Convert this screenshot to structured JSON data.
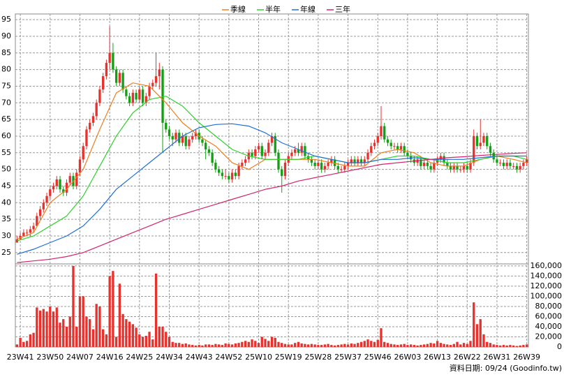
{
  "chart_data": {
    "type": "candlestick",
    "legend": "top",
    "grid": true,
    "footnote": "資料日期: 09/24 (Goodinfo.tw)",
    "up_color": "#e8302c",
    "down_color": "#11a011",
    "ylim": [
      21.6,
      96.7
    ],
    "yticks": [
      25,
      30,
      35,
      40,
      45,
      50,
      55,
      60,
      65,
      70,
      75,
      80,
      85,
      90,
      95
    ],
    "categories": [
      null,
      "23W41",
      null,
      null,
      null,
      null,
      null,
      null,
      null,
      null,
      "23W50",
      null,
      null,
      null,
      null,
      null,
      null,
      null,
      null,
      "24W07",
      null,
      null,
      null,
      null,
      null,
      null,
      null,
      null,
      "24W16",
      null,
      null,
      null,
      null,
      null,
      null,
      null,
      null,
      "24W25",
      null,
      null,
      null,
      null,
      null,
      null,
      null,
      null,
      "24W34",
      null,
      null,
      null,
      null,
      null,
      null,
      null,
      null,
      "24W43",
      null,
      null,
      null,
      null,
      null,
      null,
      null,
      null,
      "24W52",
      null,
      null,
      null,
      null,
      null,
      null,
      null,
      null,
      "25W10",
      null,
      null,
      null,
      null,
      null,
      null,
      null,
      null,
      "25W19",
      null,
      null,
      null,
      null,
      null,
      null,
      null,
      null,
      "25W28",
      null,
      null,
      null,
      null,
      null,
      null,
      null,
      null,
      "25W37",
      null,
      null,
      null,
      null,
      null,
      null,
      null,
      null,
      "25W46",
      null,
      null,
      null,
      null,
      null,
      null,
      null,
      null,
      "26W03",
      null,
      null,
      null,
      null,
      null,
      null,
      null,
      null,
      "26W13",
      null,
      null,
      null,
      null,
      null,
      null,
      null,
      null,
      "26W22",
      null,
      null,
      null,
      null,
      null,
      null,
      null,
      null,
      "26W31",
      null,
      null,
      null,
      null,
      null,
      null,
      null,
      null,
      "26W39"
    ],
    "candles": [
      [
        28,
        30,
        28,
        29
      ],
      [
        29,
        31,
        29,
        30
      ],
      [
        30,
        32,
        30,
        31
      ],
      [
        31,
        32,
        30,
        31
      ],
      [
        31,
        33,
        30,
        32
      ],
      [
        32,
        34,
        31,
        33
      ],
      [
        33,
        37,
        33,
        36
      ],
      [
        36,
        39,
        35,
        38
      ],
      [
        38,
        41,
        37,
        40
      ],
      [
        40,
        43,
        39,
        42
      ],
      [
        42,
        45,
        41,
        44
      ],
      [
        44,
        46,
        43,
        45
      ],
      [
        45,
        48,
        44,
        47
      ],
      [
        47,
        48,
        43,
        44
      ],
      [
        44,
        45,
        42,
        43
      ],
      [
        43,
        47,
        42,
        46
      ],
      [
        46,
        49,
        45,
        48
      ],
      [
        48,
        49,
        44,
        45
      ],
      [
        45,
        50,
        44,
        49
      ],
      [
        49,
        54,
        48,
        53
      ],
      [
        53,
        58,
        52,
        57
      ],
      [
        57,
        63,
        56,
        62
      ],
      [
        62,
        65,
        61,
        64
      ],
      [
        64,
        67,
        63,
        66
      ],
      [
        66,
        71,
        65,
        70
      ],
      [
        70,
        75,
        69,
        74
      ],
      [
        74,
        79,
        73,
        78
      ],
      [
        78,
        83,
        77,
        82
      ],
      [
        82,
        93,
        80,
        85
      ],
      [
        85,
        88,
        79,
        80
      ],
      [
        80,
        81,
        75,
        76
      ],
      [
        76,
        80,
        75,
        79
      ],
      [
        79,
        80,
        73,
        74
      ],
      [
        74,
        75,
        71,
        72
      ],
      [
        72,
        73,
        69,
        70
      ],
      [
        70,
        74,
        69,
        73
      ],
      [
        73,
        74,
        70,
        71
      ],
      [
        71,
        75,
        70,
        74
      ],
      [
        74,
        75,
        69,
        70
      ],
      [
        70,
        73,
        69,
        72
      ],
      [
        72,
        76,
        71,
        75
      ],
      [
        75,
        77,
        74,
        76
      ],
      [
        76,
        85,
        75,
        78
      ],
      [
        78,
        82,
        74,
        80
      ],
      [
        80,
        81,
        55,
        64
      ],
      [
        64,
        65,
        61,
        62
      ],
      [
        62,
        63,
        59,
        60
      ],
      [
        60,
        61,
        57,
        59
      ],
      [
        59,
        62,
        58,
        61
      ],
      [
        61,
        62,
        57,
        58
      ],
      [
        58,
        61,
        57,
        60
      ],
      [
        60,
        61,
        56,
        57
      ],
      [
        57,
        60,
        56,
        59
      ],
      [
        59,
        61,
        58,
        60
      ],
      [
        60,
        62,
        59,
        61
      ],
      [
        61,
        62,
        58,
        59
      ],
      [
        59,
        60,
        57,
        58
      ],
      [
        58,
        59,
        53,
        56
      ],
      [
        56,
        57,
        54,
        55
      ],
      [
        55,
        56,
        51,
        52
      ],
      [
        52,
        53,
        49,
        50
      ],
      [
        50,
        51,
        48,
        49
      ],
      [
        49,
        50,
        47,
        48
      ],
      [
        48,
        50,
        47,
        48
      ],
      [
        48,
        49,
        46,
        47
      ],
      [
        47,
        50,
        46,
        49
      ],
      [
        49,
        50,
        47,
        48
      ],
      [
        48,
        52,
        47,
        51
      ],
      [
        51,
        53,
        50,
        52
      ],
      [
        52,
        54,
        51,
        53
      ],
      [
        53,
        56,
        52,
        55
      ],
      [
        55,
        56,
        53,
        54
      ],
      [
        54,
        57,
        53,
        56
      ],
      [
        56,
        58,
        55,
        57
      ],
      [
        57,
        58,
        53,
        54
      ],
      [
        54,
        56,
        53,
        55
      ],
      [
        55,
        59,
        54,
        58
      ],
      [
        58,
        61,
        57,
        60
      ],
      [
        60,
        61,
        54,
        55
      ],
      [
        55,
        56,
        49,
        50
      ],
      [
        50,
        51,
        43,
        48
      ],
      [
        48,
        53,
        47,
        52
      ],
      [
        52,
        55,
        51,
        54
      ],
      [
        54,
        56,
        53,
        55
      ],
      [
        55,
        57,
        54,
        56
      ],
      [
        56,
        58,
        54,
        55
      ],
      [
        55,
        58,
        54,
        57
      ],
      [
        57,
        58,
        53,
        54
      ],
      [
        54,
        55,
        52,
        53
      ],
      [
        53,
        54,
        51,
        52
      ],
      [
        52,
        53,
        50,
        51
      ],
      [
        51,
        53,
        50,
        52
      ],
      [
        52,
        53,
        49,
        50
      ],
      [
        50,
        52,
        49,
        51
      ],
      [
        51,
        53,
        50,
        52
      ],
      [
        52,
        54,
        51,
        53
      ],
      [
        53,
        54,
        50,
        51
      ],
      [
        51,
        52,
        49,
        50
      ],
      [
        50,
        51,
        49,
        50
      ],
      [
        50,
        52,
        49,
        51
      ],
      [
        51,
        53,
        50,
        52
      ],
      [
        52,
        54,
        51,
        53
      ],
      [
        53,
        54,
        51,
        52
      ],
      [
        52,
        54,
        51,
        53
      ],
      [
        53,
        54,
        51,
        52
      ],
      [
        52,
        54,
        51,
        53
      ],
      [
        53,
        56,
        52,
        55
      ],
      [
        55,
        58,
        54,
        57
      ],
      [
        57,
        59,
        56,
        58
      ],
      [
        58,
        61,
        57,
        60
      ],
      [
        60,
        69,
        59,
        63
      ],
      [
        63,
        64,
        58,
        59
      ],
      [
        59,
        60,
        57,
        58
      ],
      [
        58,
        59,
        56,
        57
      ],
      [
        57,
        58,
        56,
        57
      ],
      [
        57,
        58,
        55,
        56
      ],
      [
        56,
        58,
        55,
        57
      ],
      [
        57,
        58,
        54,
        55
      ],
      [
        55,
        56,
        53,
        54
      ],
      [
        54,
        55,
        52,
        53
      ],
      [
        53,
        54,
        51,
        52
      ],
      [
        52,
        54,
        51,
        53
      ],
      [
        53,
        54,
        50,
        51
      ],
      [
        51,
        53,
        50,
        52
      ],
      [
        52,
        53,
        50,
        51
      ],
      [
        51,
        52,
        49,
        50
      ],
      [
        50,
        53,
        49,
        52
      ],
      [
        52,
        54,
        51,
        53
      ],
      [
        53,
        55,
        52,
        54
      ],
      [
        54,
        55,
        51,
        52
      ],
      [
        52,
        53,
        50,
        51
      ],
      [
        51,
        52,
        49,
        50
      ],
      [
        50,
        52,
        49,
        51
      ],
      [
        51,
        52,
        49,
        50
      ],
      [
        50,
        51,
        49,
        50
      ],
      [
        50,
        52,
        49,
        51
      ],
      [
        51,
        52,
        49,
        50
      ],
      [
        50,
        53,
        49,
        52
      ],
      [
        52,
        62,
        51,
        60
      ],
      [
        60,
        61,
        56,
        57
      ],
      [
        57,
        65,
        56,
        58
      ],
      [
        58,
        61,
        57,
        60
      ],
      [
        60,
        61,
        56,
        57
      ],
      [
        57,
        58,
        54,
        55
      ],
      [
        55,
        56,
        52,
        53
      ],
      [
        53,
        54,
        51,
        52
      ],
      [
        52,
        53,
        51,
        52
      ],
      [
        52,
        53,
        50,
        51
      ],
      [
        51,
        53,
        50,
        52
      ],
      [
        52,
        53,
        50,
        51
      ],
      [
        51,
        52,
        50,
        51
      ],
      [
        51,
        52,
        49,
        50
      ],
      [
        50,
        52,
        49,
        51
      ],
      [
        51,
        53,
        50,
        52
      ],
      [
        52,
        54,
        51,
        53
      ]
    ],
    "volume": {
      "color": "#e8302c",
      "ylim": [
        0,
        164000
      ],
      "yticks": [
        0,
        {
          "value": 20000,
          "label": "20,000"
        },
        {
          "value": 40000,
          "label": "40,000"
        },
        {
          "value": 60000,
          "label": "60,000"
        },
        {
          "value": 80000,
          "label": "80,000"
        },
        {
          "value": 100000,
          "label": "100,000"
        },
        {
          "value": 120000,
          "label": "120,000"
        },
        {
          "value": 140000,
          "label": "140,000"
        },
        {
          "value": 160000,
          "label": "160,000"
        }
      ],
      "values": [
        5000,
        18000,
        10000,
        12000,
        25000,
        28000,
        78000,
        72000,
        75000,
        70000,
        80000,
        70000,
        78000,
        48000,
        55000,
        40000,
        60000,
        160000,
        40000,
        100000,
        100000,
        60000,
        55000,
        35000,
        85000,
        80000,
        35000,
        25000,
        140000,
        150000,
        20000,
        125000,
        65000,
        55000,
        50000,
        45000,
        38000,
        25000,
        20000,
        22000,
        30000,
        15000,
        145000,
        40000,
        40000,
        30000,
        20000,
        10000,
        8000,
        8000,
        6000,
        7000,
        5000,
        4000,
        3000,
        4000,
        3000,
        5000,
        5000,
        4000,
        6000,
        5000,
        4000,
        7000,
        6000,
        5000,
        7000,
        8000,
        10000,
        12000,
        10000,
        15000,
        12000,
        8000,
        20000,
        16000,
        12000,
        20000,
        18000,
        10000,
        8000,
        6000,
        5000,
        5000,
        8000,
        10000,
        7000,
        6000,
        5000,
        6000,
        5000,
        4000,
        4000,
        5000,
        6000,
        4000,
        3000,
        4000,
        5000,
        6000,
        5000,
        7000,
        6000,
        8000,
        10000,
        12000,
        15000,
        12000,
        10000,
        14000,
        37000,
        10000,
        8000,
        6000,
        5000,
        4000,
        5000,
        6000,
        4000,
        5000,
        4000,
        3000,
        4000,
        5000,
        6000,
        8000,
        7000,
        12000,
        8000,
        6000,
        5000,
        4000,
        6000,
        10000,
        5000,
        8000,
        6000,
        12000,
        88000,
        45000,
        55000,
        25000,
        10000,
        8000,
        5000,
        4000,
        3000,
        4000,
        3000,
        4000,
        3000,
        2000,
        3000,
        4000,
        5000
      ]
    },
    "ma_series": [
      {
        "name": "季線",
        "color": "#f07d1e",
        "x": [
          0,
          5,
          10,
          15,
          20,
          25,
          30,
          35,
          40,
          45,
          50,
          55,
          60,
          65,
          70,
          75,
          80,
          85,
          90,
          95,
          100,
          105,
          110,
          115,
          120,
          125,
          130,
          135,
          140,
          145,
          150,
          154
        ],
        "values": [
          29,
          31,
          40,
          44,
          50,
          62,
          73,
          76,
          75,
          70,
          64,
          60,
          57,
          52,
          50,
          53,
          53,
          53,
          53,
          52,
          51,
          51,
          55,
          56,
          55,
          52,
          51,
          51,
          53,
          54,
          53,
          52
        ]
      },
      {
        "name": "半年",
        "color": "#2ed12e",
        "x": [
          0,
          5,
          10,
          15,
          20,
          25,
          30,
          35,
          40,
          45,
          50,
          55,
          60,
          65,
          70,
          75,
          80,
          85,
          90,
          95,
          100,
          105,
          110,
          115,
          120,
          125,
          130,
          135,
          140,
          145,
          150,
          154
        ],
        "values": [
          28.5,
          30,
          33,
          36,
          42,
          51,
          60,
          67,
          71,
          72,
          69,
          64,
          60,
          56,
          54,
          53,
          53,
          53,
          54,
          53,
          52,
          52,
          53,
          54,
          54,
          53,
          52,
          52,
          53,
          54,
          54,
          53
        ]
      },
      {
        "name": "年線",
        "color": "#1f6fd6",
        "x": [
          0,
          5,
          10,
          15,
          20,
          25,
          30,
          35,
          40,
          45,
          50,
          55,
          60,
          65,
          70,
          75,
          80,
          85,
          90,
          95,
          100,
          105,
          110,
          115,
          120,
          125,
          130,
          135,
          140,
          145,
          150,
          154
        ],
        "values": [
          24.5,
          26,
          28,
          30,
          33,
          38,
          44,
          48,
          52,
          56,
          60,
          62.5,
          63.5,
          63.7,
          63,
          61,
          58,
          56,
          54,
          53,
          52,
          52,
          53,
          53,
          53.5,
          53,
          53,
          53,
          53.5,
          54,
          54,
          54
        ]
      },
      {
        "name": "三年",
        "color": "#d4246c",
        "x": [
          0,
          5,
          10,
          15,
          20,
          25,
          30,
          35,
          40,
          45,
          50,
          55,
          60,
          65,
          70,
          75,
          80,
          85,
          90,
          95,
          100,
          105,
          110,
          115,
          120,
          125,
          130,
          135,
          140,
          145,
          150,
          154
        ],
        "values": [
          22,
          22.5,
          23,
          23.8,
          25,
          27,
          29,
          31,
          33,
          35,
          36.5,
          38,
          39.5,
          41,
          42.5,
          44,
          45,
          46.5,
          47.5,
          48.5,
          49.5,
          50.5,
          51.5,
          52,
          52.5,
          53,
          53.5,
          53.8,
          54.2,
          54.5,
          54.8,
          55
        ]
      }
    ]
  }
}
